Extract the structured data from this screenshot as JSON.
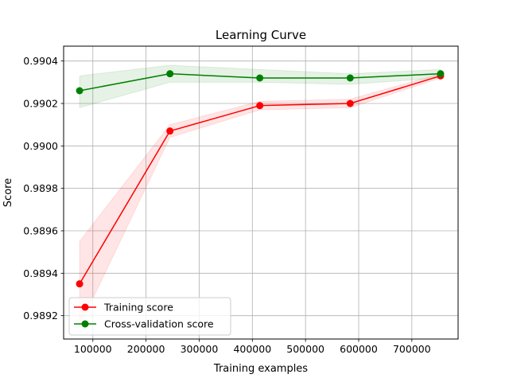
{
  "chart_data": {
    "type": "line",
    "title": "Learning Curve",
    "xlabel": "Training examples",
    "ylabel": "Score",
    "xlim": [
      45000,
      787000
    ],
    "ylim": [
      0.98909,
      0.99047
    ],
    "x_ticks": [
      100000,
      200000,
      300000,
      400000,
      500000,
      600000,
      700000
    ],
    "x_tick_labels": [
      "100000",
      "200000",
      "300000",
      "400000",
      "500000",
      "600000",
      "700000"
    ],
    "y_ticks": [
      0.9892,
      0.9894,
      0.9896,
      0.9898,
      0.99,
      0.9902,
      0.9904
    ],
    "y_tick_labels": [
      "0.9892",
      "0.9894",
      "0.9896",
      "0.9898",
      "0.9900",
      "0.9902",
      "0.9904"
    ],
    "grid": true,
    "legend_position": "lower-left",
    "x": [
      75000,
      245000,
      414000,
      584000,
      754000
    ],
    "series": [
      {
        "name": "Training score",
        "color": "#ff0000",
        "values": [
          0.98935,
          0.99007,
          0.99019,
          0.9902,
          0.99033
        ],
        "band_low": [
          0.98915,
          0.99004,
          0.99017,
          0.99018,
          0.99032
        ],
        "band_high": [
          0.98955,
          0.9901,
          0.99021,
          0.99022,
          0.99034
        ]
      },
      {
        "name": "Cross-validation score",
        "color": "#008000",
        "values": [
          0.99026,
          0.99034,
          0.99032,
          0.99032,
          0.99034
        ],
        "band_low": [
          0.99018,
          0.9903,
          0.9903,
          0.99029,
          0.99032
        ],
        "band_high": [
          0.99033,
          0.99038,
          0.99036,
          0.99034,
          0.99036
        ]
      }
    ]
  }
}
